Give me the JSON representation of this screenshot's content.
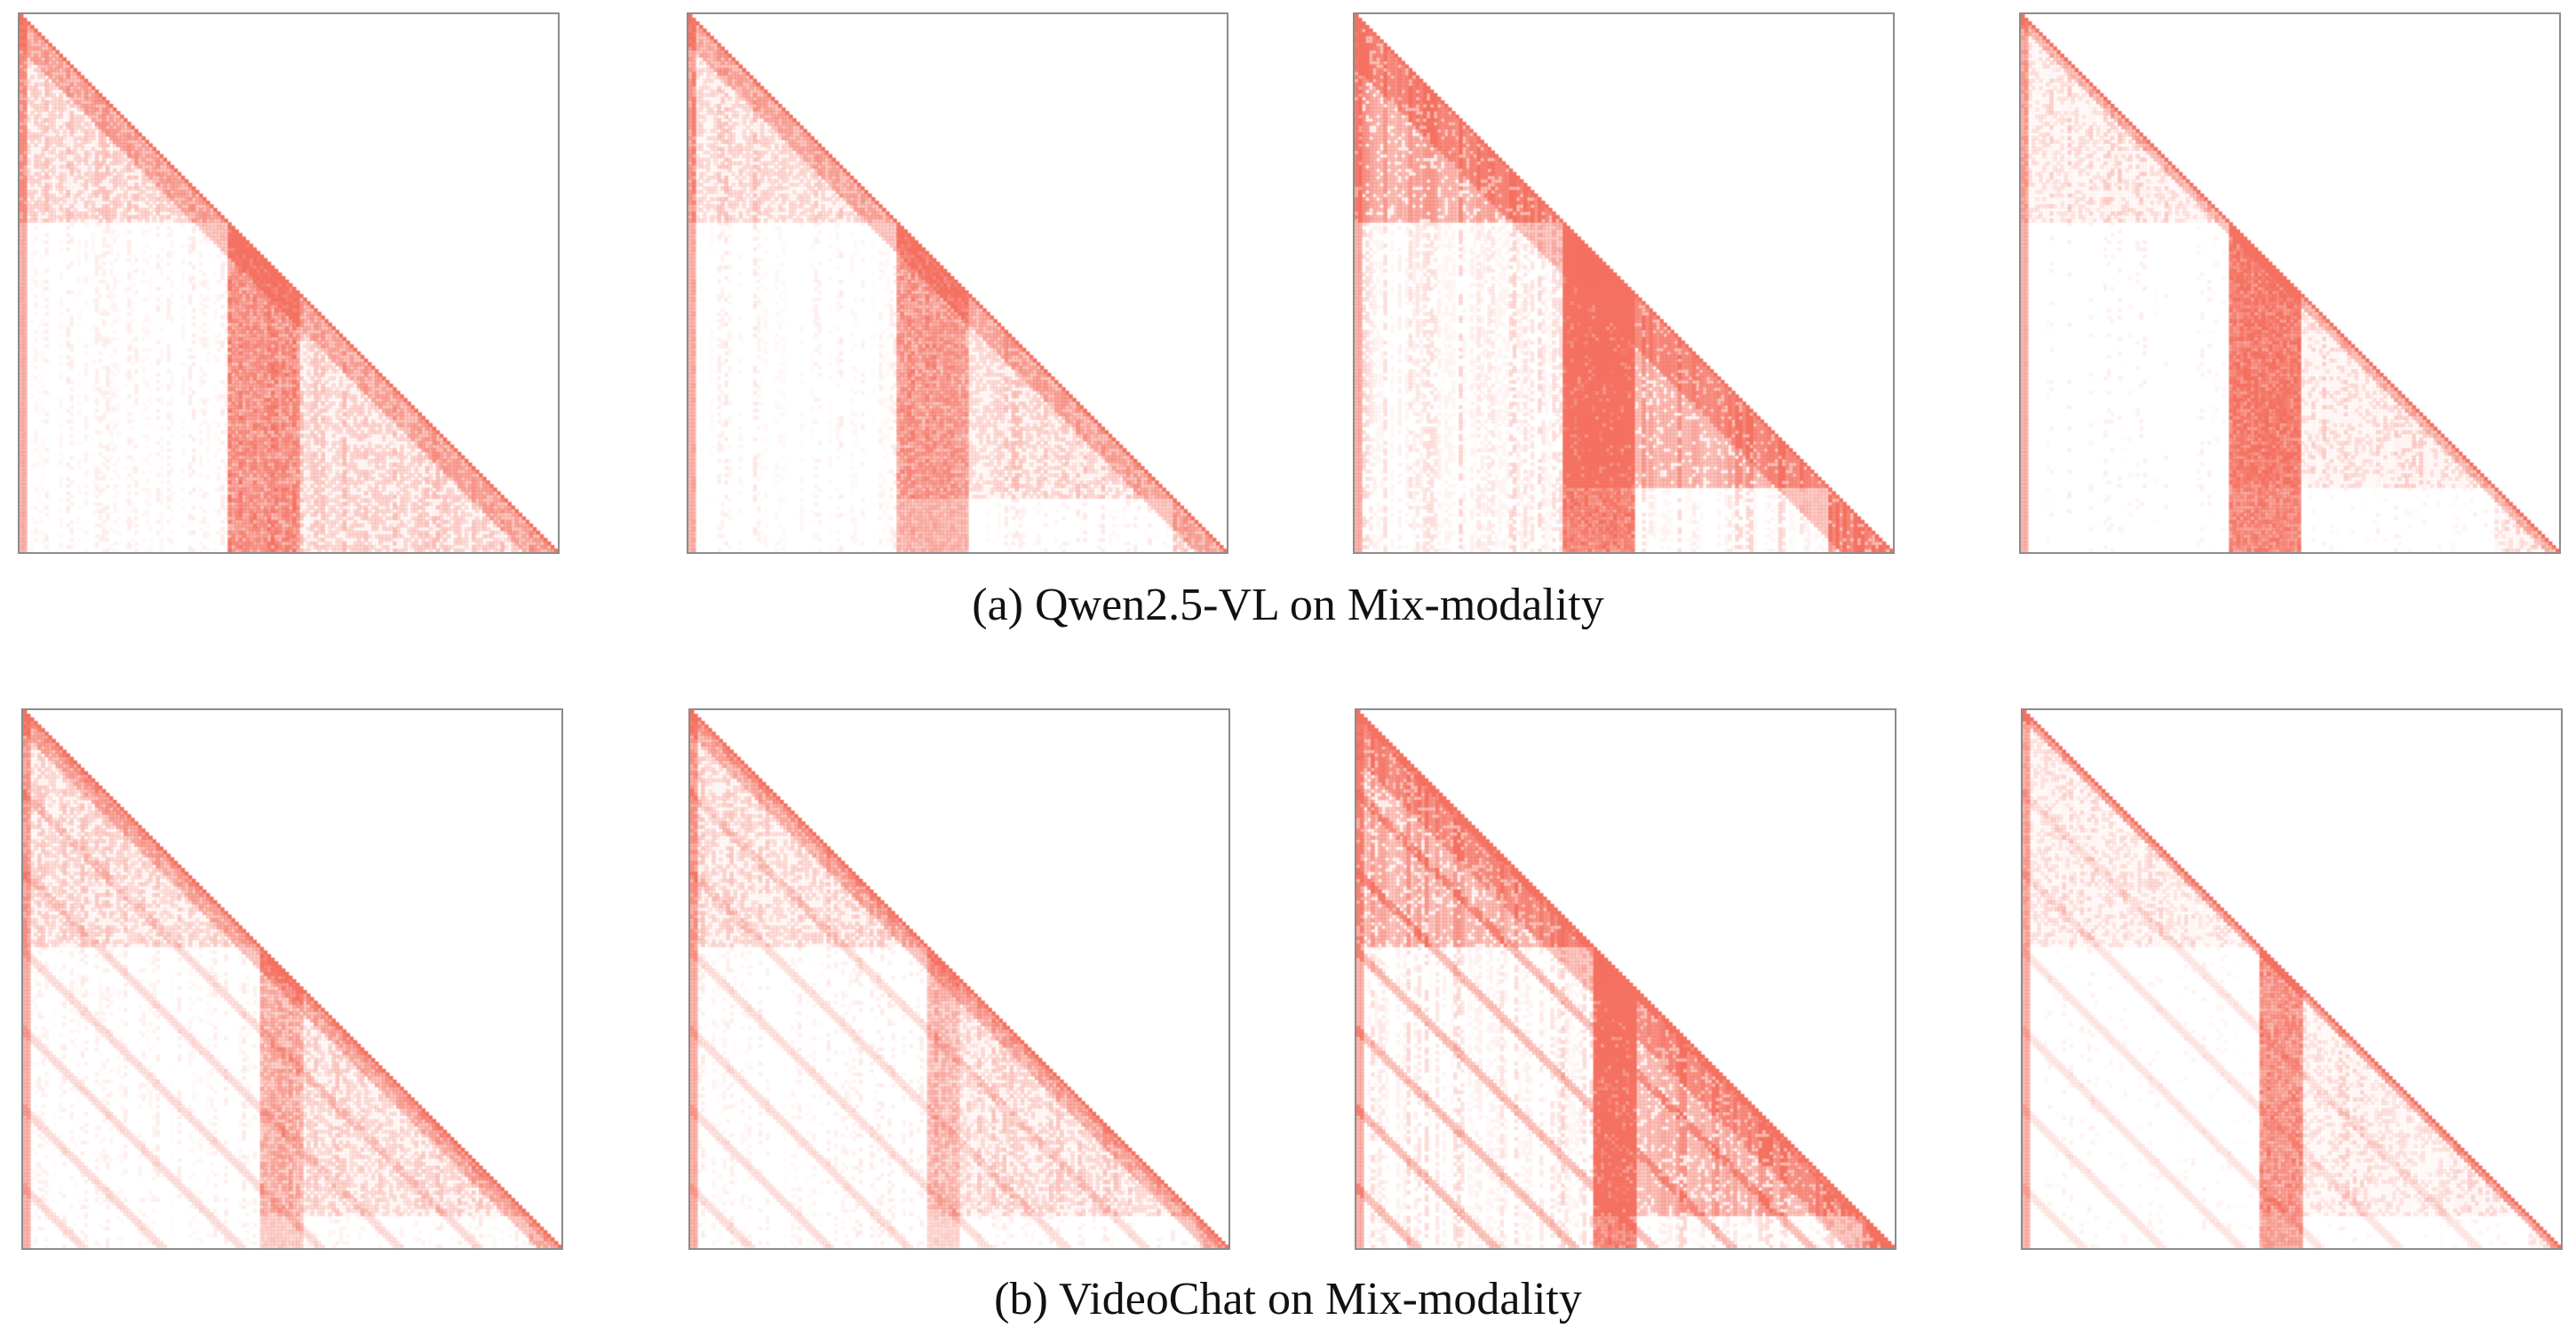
{
  "figure": {
    "colors": {
      "attention": "#f47060",
      "frame": "#8c8c8c",
      "caption": "#111111"
    },
    "rows": [
      {
        "caption": "(a) Qwen2.5-VL on Mix-modality",
        "model": "Qwen2.5-VL",
        "panels": [
          {
            "segments": [
              0,
              0.39,
              1.0
            ],
            "bands": [
              [
                0.39,
                0.52,
                0.6
              ]
            ],
            "density": 0.35,
            "intensity": 0.45,
            "diagonal_strip": 0.32,
            "pattern": "blocks"
          },
          {
            "segments": [
              0,
              0.39,
              0.9,
              1.0
            ],
            "bands": [
              [
                0.39,
                0.52,
                0.55
              ]
            ],
            "density": 0.32,
            "intensity": 0.42,
            "diagonal_strip": 0.28,
            "pattern": "blocks"
          },
          {
            "segments": [
              0,
              0.39,
              0.88,
              1.0
            ],
            "bands": [
              [
                0.39,
                0.52,
                0.95
              ]
            ],
            "density": 0.55,
            "intensity": 0.8,
            "diagonal_strip": 0.5,
            "pattern": "blocks"
          },
          {
            "segments": [
              0,
              0.39,
              0.88,
              1.0
            ],
            "bands": [
              [
                0.39,
                0.52,
                0.95
              ]
            ],
            "density": 0.12,
            "intensity": 0.35,
            "diagonal_strip": 0.1,
            "pattern": "blocks"
          }
        ]
      },
      {
        "caption": "(b) VideoChat on Mix-modality",
        "model": "VideoChat",
        "panels": [
          {
            "segments": [
              0,
              0.44,
              0.94,
              1.0
            ],
            "bands": [
              [
                0.44,
                0.52,
                0.35
              ]
            ],
            "density": 0.3,
            "intensity": 0.4,
            "diagonal_strip": 0.2,
            "pattern": "diagonal"
          },
          {
            "segments": [
              0,
              0.44,
              0.94,
              1.0
            ],
            "bands": [
              [
                0.44,
                0.5,
                0.3
              ]
            ],
            "density": 0.28,
            "intensity": 0.38,
            "diagonal_strip": 0.2,
            "pattern": "diagonal"
          },
          {
            "segments": [
              0,
              0.44,
              0.94,
              1.0
            ],
            "bands": [
              [
                0.44,
                0.52,
                0.9
              ]
            ],
            "density": 0.5,
            "intensity": 0.75,
            "diagonal_strip": 0.45,
            "pattern": "diagonal"
          },
          {
            "segments": [
              0,
              0.44,
              0.94,
              1.0
            ],
            "bands": [
              [
                0.44,
                0.52,
                0.7
              ]
            ],
            "density": 0.12,
            "intensity": 0.3,
            "diagonal_strip": 0.08,
            "pattern": "diagonal"
          }
        ]
      }
    ]
  }
}
